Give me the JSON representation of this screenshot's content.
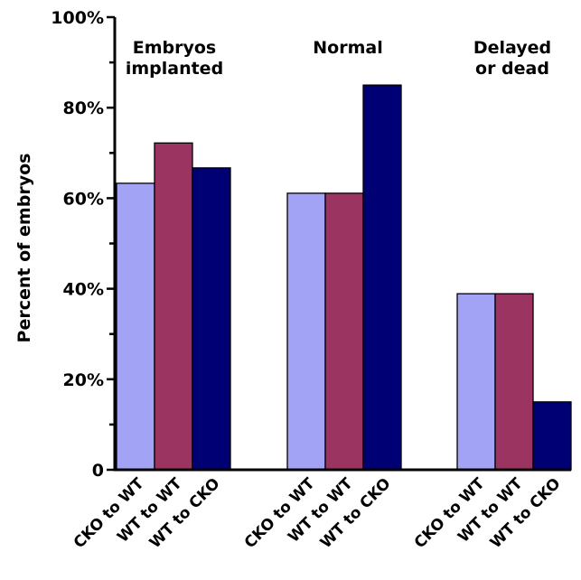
{
  "chart_data": {
    "type": "bar",
    "title": "",
    "xlabel": "",
    "ylabel": "Percent of embryos",
    "ylim": [
      0,
      100
    ],
    "yticks": [
      0,
      20,
      40,
      60,
      80,
      100
    ],
    "ytick_labels": [
      "0",
      "20%",
      "40%",
      "60%",
      "80%",
      "100%"
    ],
    "grid": false,
    "colors": {
      "CKO to WT": "#a3a3f5",
      "WT to WT": "#9c3462",
      "WT to CKO": "#000075"
    },
    "groups": [
      {
        "label": [
          "Embryos",
          "implanted"
        ],
        "categories": [
          "CKO to WT",
          "WT to WT",
          "WT to CKO"
        ],
        "values": [
          63.3,
          72.2,
          66.7
        ]
      },
      {
        "label": [
          "Normal"
        ],
        "categories": [
          "CKO to WT",
          "WT to WT",
          "WT to CKO"
        ],
        "values": [
          61.1,
          61.1,
          85
        ]
      },
      {
        "label": [
          "Delayed",
          "or dead"
        ],
        "categories": [
          "CKO to WT",
          "WT to WT",
          "WT to CKO"
        ],
        "values": [
          38.9,
          38.9,
          15
        ]
      }
    ]
  }
}
